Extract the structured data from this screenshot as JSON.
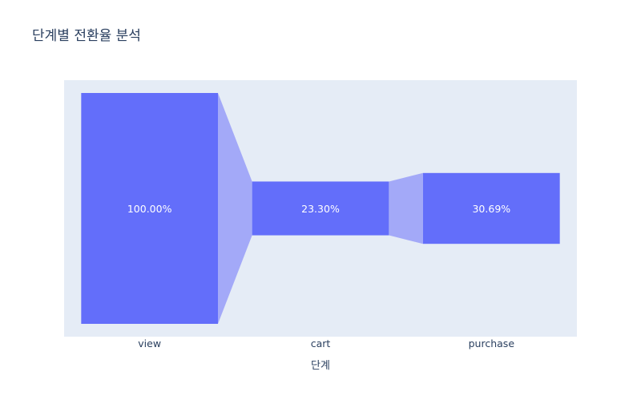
{
  "chart_data": {
    "type": "bar",
    "title": "단계별 전환율 분석",
    "xlabel": "단계",
    "ylabel": "",
    "categories": [
      "view",
      "cart",
      "purchase"
    ],
    "values": [
      100.0,
      23.3,
      30.69
    ],
    "value_labels": [
      "100.00%",
      "23.30%",
      "30.69%"
    ],
    "value_unit": "%",
    "ylim": [
      -100,
      100
    ],
    "grid": false,
    "legend": "none"
  },
  "colors": {
    "bar": "#636efa",
    "connector": "#a3a9f8",
    "plot_background": "#e5ecf6",
    "title_text": "#2a3f5f",
    "value_label_text": "#ffffff"
  }
}
